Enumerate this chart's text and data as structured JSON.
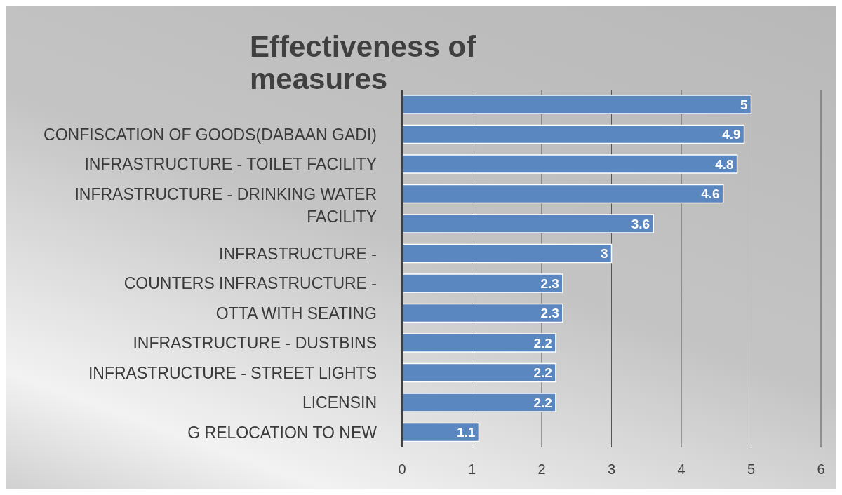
{
  "chart_data": {
    "type": "bar",
    "orientation": "horizontal",
    "title": "Effectiveness of measures",
    "categories": [
      null,
      "CONFISCATION OF GOODS(DABAAN GADI)",
      "INFRASTRUCTURE - TOILET FACILITY",
      "INFRASTRUCTURE - DRINKING WATER FACILITY",
      null,
      "INFRASTRUCTURE -",
      "COUNTERS INFRASTRUCTURE -",
      "OTTA WITH SEATING",
      "INFRASTRUCTURE - DUSTBINS",
      "INFRASTRUCTURE - STREET LIGHTS",
      "LICENSIN",
      "G RELOCATION TO NEW"
    ],
    "values": [
      5,
      4.9,
      4.8,
      4.6,
      3.6,
      3,
      2.3,
      2.3,
      2.2,
      2.2,
      2.2,
      1.1
    ],
    "color": "#5b87c0",
    "xlim": [
      0,
      6
    ],
    "xticks": [
      0,
      1,
      2,
      3,
      4,
      5,
      6
    ],
    "grid": "x",
    "data_labels": true
  }
}
